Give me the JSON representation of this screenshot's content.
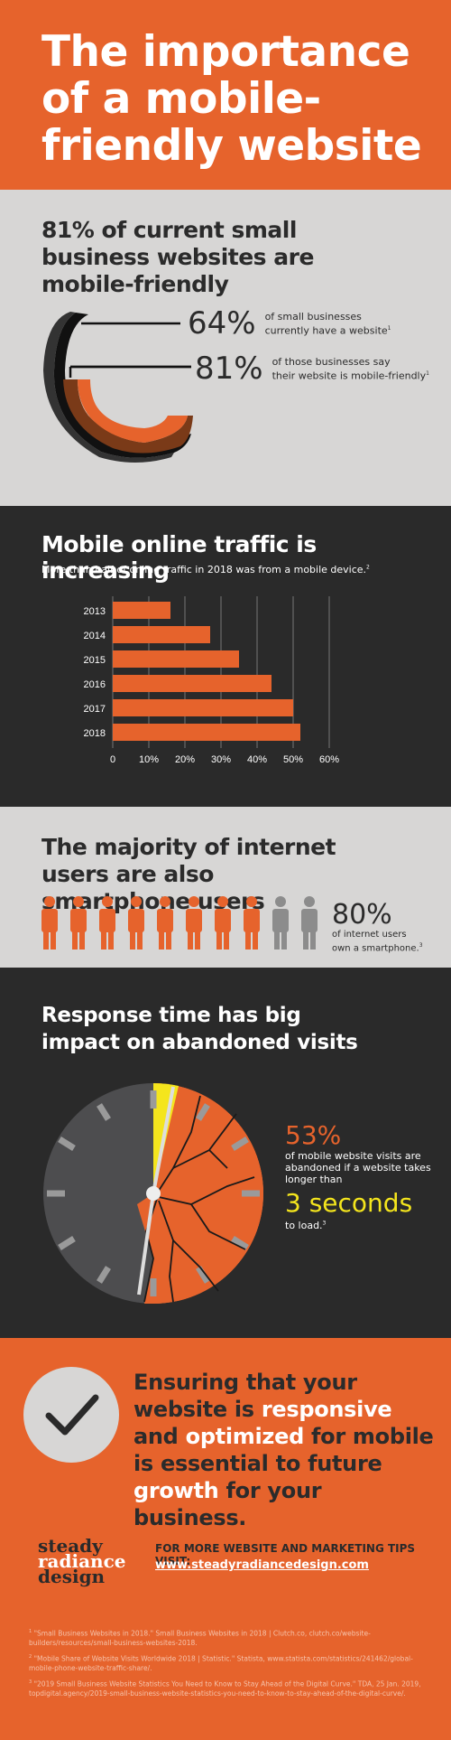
{
  "colors": {
    "orange": "#e6632c",
    "dark": "#2a2a2a",
    "light": "#d7d6d5",
    "yellow": "#f4e51d",
    "gray": "#8c8c8c"
  },
  "title": "The importance of a mobile-friendly website",
  "section1": {
    "heading": "81% of current small business websites are mobile-friendly",
    "stat1": {
      "value": "64%",
      "line1": "of small businesses",
      "line2": "currently have a website",
      "sup": "1"
    },
    "stat2": {
      "value": "81%",
      "line1": "of those businesses say",
      "line2": "their website is mobile-friendly",
      "sup": "1"
    }
  },
  "section2": {
    "heading": "Mobile online traffic is increasing",
    "subheading": "More than half of online traffic in 2018 was from a mobile device.",
    "sup": "2",
    "chart_data": {
      "type": "bar",
      "orientation": "horizontal",
      "categories": [
        "2013",
        "2014",
        "2015",
        "2016",
        "2017",
        "2018"
      ],
      "values": [
        16,
        27,
        35,
        44,
        50,
        52
      ],
      "xticks": [
        "0",
        "10%",
        "20%",
        "30%",
        "40%",
        "50%",
        "60%"
      ],
      "xlim": [
        0,
        60
      ],
      "grid": true
    }
  },
  "section3": {
    "heading": "The majority of internet users are also smartphone users",
    "value": "80%",
    "line1": "of internet users",
    "line2": "own a smartphone.",
    "sup": "3",
    "highlighted_people": 8,
    "total_people": 10
  },
  "section4": {
    "heading": "Response time has big impact on abandoned visits",
    "value": "53%",
    "text": "of mobile website visits are abandoned if a website takes longer than",
    "seconds": "3 seconds",
    "tail": "to load.",
    "sup": "3"
  },
  "section5": {
    "message_parts": [
      {
        "t": "Ensuring that your website ",
        "w": false
      },
      {
        "t": "is ",
        "w": false
      },
      {
        "t": "responsive",
        "w": true
      },
      {
        "t": " and ",
        "w": false
      },
      {
        "t": "optimized",
        "w": true
      },
      {
        "t": " for mobile is essential to future ",
        "w": false
      },
      {
        "t": "growth",
        "w": true
      },
      {
        "t": " for your business.",
        "w": false
      }
    ],
    "logo": [
      "steady",
      "radiance",
      "design"
    ],
    "cta": "FOR MORE WEBSITE AND MARKETING TIPS VISIT:",
    "url": "www.steadyradiancedesign.com",
    "footnotes": [
      {
        "n": "1",
        "text": "\"Small Business Websites in 2018.\" Small Business Websites in 2018 | Clutch.co, clutch.co/website-builders/resources/small-business-websites-2018."
      },
      {
        "n": "2",
        "text": "\"Mobile Share of Website Visits Worldwide 2018 | Statistic.\" Statista, www.statista.com/statistics/241462/global-mobile-phone-website-traffic-share/."
      },
      {
        "n": "3",
        "text": "\"2019 Small Business Website Statistics You Need to Know to Stay Ahead of the Digital Curve.\" TDA, 25 Jan. 2019, topdigital.agency/2019-small-business-website-statistics-you-need-to-know-to-stay-ahead-of-the-digital-curve/."
      }
    ]
  }
}
